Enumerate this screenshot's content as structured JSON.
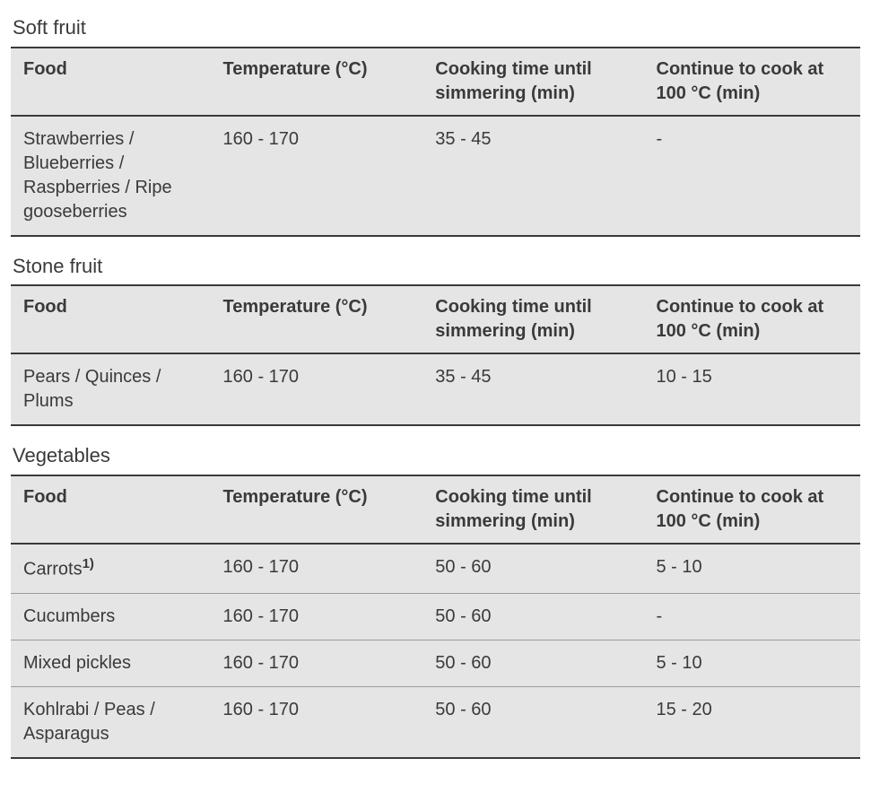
{
  "styles": {
    "page_background": "#ffffff",
    "table_background": "#e5e5e5",
    "text_color": "#3a3a3a",
    "heavy_rule_color": "#3a3a3a",
    "row_rule_color": "#9a9a9a",
    "heading_fontsize_pt": 16,
    "header_fontsize_pt": 15,
    "cell_fontsize_pt": 15,
    "column_widths_pct": [
      23.5,
      25,
      26,
      25.5
    ]
  },
  "columns": {
    "food": "Food",
    "temperature": "Temperature (°C)",
    "cook_until_simmer": "Cooking time until simmering (min)",
    "continue_at_100": "Continue to cook at 100 °C (min)"
  },
  "sections": [
    {
      "title": "Soft fruit",
      "rows": [
        {
          "food": "Strawberries / Blueberries / Raspberries / Ripe gooseberries",
          "temperature": "160 - 170",
          "cook_until_simmer": "35 - 45",
          "continue_at_100": "-",
          "footnote": ""
        }
      ]
    },
    {
      "title": "Stone fruit",
      "rows": [
        {
          "food": "Pears / Quinces / Plums",
          "temperature": "160 - 170",
          "cook_until_simmer": "35 - 45",
          "continue_at_100": "10 - 15",
          "footnote": ""
        }
      ]
    },
    {
      "title": "Vegetables",
      "rows": [
        {
          "food": "Carrots",
          "temperature": "160 - 170",
          "cook_until_simmer": "50 - 60",
          "continue_at_100": "5 - 10",
          "footnote": "1)"
        },
        {
          "food": "Cucumbers",
          "temperature": "160 - 170",
          "cook_until_simmer": "50 - 60",
          "continue_at_100": "-",
          "footnote": ""
        },
        {
          "food": "Mixed pickles",
          "temperature": "160 - 170",
          "cook_until_simmer": "50 - 60",
          "continue_at_100": "5 - 10",
          "footnote": ""
        },
        {
          "food": "Kohlrabi / Peas / Asparagus",
          "temperature": "160 - 170",
          "cook_until_simmer": "50 - 60",
          "continue_at_100": "15 - 20",
          "footnote": ""
        }
      ]
    }
  ]
}
